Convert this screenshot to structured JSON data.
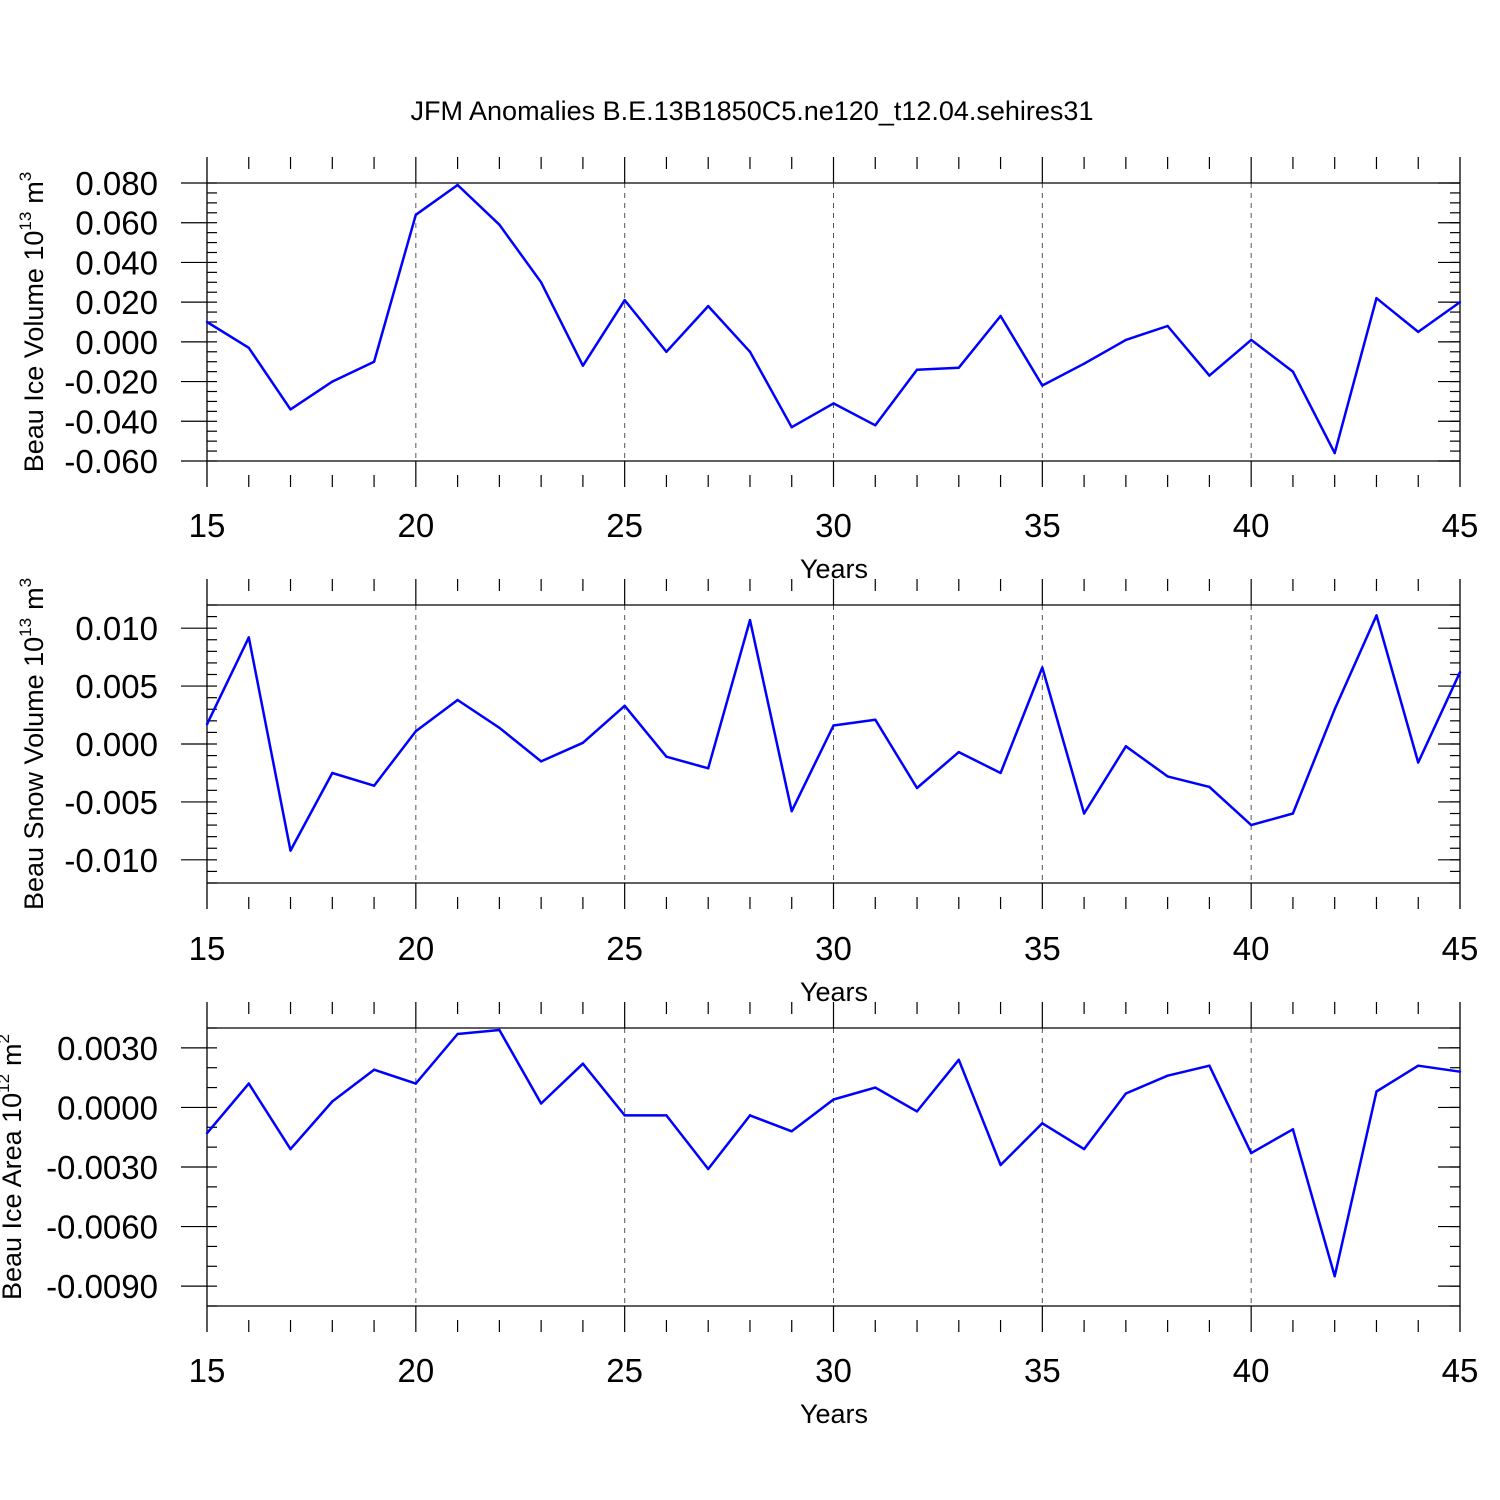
{
  "page": {
    "title": "JFM Anomalies B.E.13B1850C5.ne120_t12.04.sehires31"
  },
  "colors": {
    "series": "#0000ff",
    "frame": "#000000",
    "grid": "#555555",
    "background": "#ffffff"
  },
  "chart_data": [
    {
      "type": "line",
      "title": "",
      "xlabel": "Years",
      "ylabel": "Beau Ice Volume 10",
      "ylabel_sup": "13",
      "ylabel_unit": "m",
      "ylabel_unit_sup": "3",
      "xlim": [
        15,
        45
      ],
      "ylim": [
        -0.06,
        0.08
      ],
      "x_ticks": [
        15,
        20,
        25,
        30,
        35,
        40,
        45
      ],
      "x_tick_labels": [
        "15",
        "20",
        "25",
        "30",
        "35",
        "40",
        "45"
      ],
      "y_ticks": [
        -0.06,
        -0.04,
        -0.02,
        0.0,
        0.02,
        0.04,
        0.06,
        0.08
      ],
      "y_tick_labels": [
        "-0.060",
        "-0.040",
        "-0.020",
        "0.000",
        "0.020",
        "0.040",
        "0.060",
        "0.080"
      ],
      "y_minor_step": 0.005,
      "grid": "vertical dashed at major x ticks",
      "x": [
        15,
        16,
        17,
        18,
        19,
        20,
        21,
        22,
        23,
        24,
        25,
        26,
        27,
        28,
        29,
        30,
        31,
        32,
        33,
        34,
        35,
        36,
        37,
        38,
        39,
        40,
        41,
        42,
        43,
        44,
        45
      ],
      "series": [
        {
          "values": [
            0.01,
            -0.003,
            -0.034,
            -0.02,
            -0.01,
            0.064,
            0.079,
            0.059,
            0.03,
            -0.012,
            0.021,
            -0.005,
            0.018,
            -0.005,
            -0.043,
            -0.031,
            -0.042,
            -0.014,
            -0.013,
            0.013,
            -0.022,
            -0.011,
            0.001,
            0.008,
            -0.017,
            0.001,
            -0.015,
            -0.056,
            0.022,
            0.005,
            0.02
          ]
        }
      ]
    },
    {
      "type": "line",
      "title": "",
      "xlabel": "Years",
      "ylabel": "Beau Snow Volume 10",
      "ylabel_sup": "13",
      "ylabel_unit": "m",
      "ylabel_unit_sup": "3",
      "xlim": [
        15,
        45
      ],
      "ylim": [
        -0.012,
        0.012
      ],
      "x_ticks": [
        15,
        20,
        25,
        30,
        35,
        40,
        45
      ],
      "x_tick_labels": [
        "15",
        "20",
        "25",
        "30",
        "35",
        "40",
        "45"
      ],
      "y_ticks": [
        -0.01,
        -0.005,
        0.0,
        0.005,
        0.01
      ],
      "y_tick_labels": [
        "-0.010",
        "-0.005",
        "0.000",
        "0.005",
        "0.010"
      ],
      "y_minor_step": 0.001,
      "grid": "vertical dashed at major x ticks",
      "x": [
        15,
        16,
        17,
        18,
        19,
        20,
        21,
        22,
        23,
        24,
        25,
        26,
        27,
        28,
        29,
        30,
        31,
        32,
        33,
        34,
        35,
        36,
        37,
        38,
        39,
        40,
        41,
        42,
        43,
        44,
        45
      ],
      "series": [
        {
          "values": [
            0.0017,
            0.0092,
            -0.0092,
            -0.0025,
            -0.0036,
            0.0011,
            0.0038,
            0.0014,
            -0.0015,
            0.0001,
            0.0033,
            -0.0011,
            -0.0021,
            0.0107,
            -0.0058,
            0.0016,
            0.0021,
            -0.0038,
            -0.0007,
            -0.0025,
            0.0066,
            -0.006,
            -0.0002,
            -0.0028,
            -0.0037,
            -0.007,
            -0.006,
            0.003,
            0.0111,
            -0.0016,
            0.0062
          ]
        }
      ]
    },
    {
      "type": "line",
      "title": "",
      "xlabel": "Years",
      "ylabel": "Beau Ice Area 10",
      "ylabel_sup": "12",
      "ylabel_unit": "m",
      "ylabel_unit_sup": "2",
      "xlim": [
        15,
        45
      ],
      "ylim": [
        -0.01,
        0.004
      ],
      "x_ticks": [
        15,
        20,
        25,
        30,
        35,
        40,
        45
      ],
      "x_tick_labels": [
        "15",
        "20",
        "25",
        "30",
        "35",
        "40",
        "45"
      ],
      "y_ticks": [
        -0.009,
        -0.006,
        -0.003,
        0.0,
        0.003
      ],
      "y_tick_labels": [
        "-0.0090",
        "-0.0060",
        "-0.0030",
        "0.0000",
        "0.0030"
      ],
      "y_minor_step": 0.001,
      "grid": "vertical dashed at major x ticks",
      "x": [
        15,
        16,
        17,
        18,
        19,
        20,
        21,
        22,
        23,
        24,
        25,
        26,
        27,
        28,
        29,
        30,
        31,
        32,
        33,
        34,
        35,
        36,
        37,
        38,
        39,
        40,
        41,
        42,
        43,
        44,
        45
      ],
      "series": [
        {
          "values": [
            -0.0013,
            0.0012,
            -0.0021,
            0.0003,
            0.0019,
            0.0012,
            0.0037,
            0.0039,
            0.0002,
            0.0022,
            -0.0004,
            -0.0004,
            -0.0031,
            -0.0004,
            -0.0012,
            0.0004,
            0.001,
            -0.0002,
            0.0024,
            -0.0029,
            -0.0008,
            -0.0021,
            0.0007,
            0.0016,
            0.0021,
            -0.0023,
            -0.0011,
            -0.0085,
            0.0008,
            0.0021,
            0.0018
          ]
        }
      ]
    }
  ]
}
